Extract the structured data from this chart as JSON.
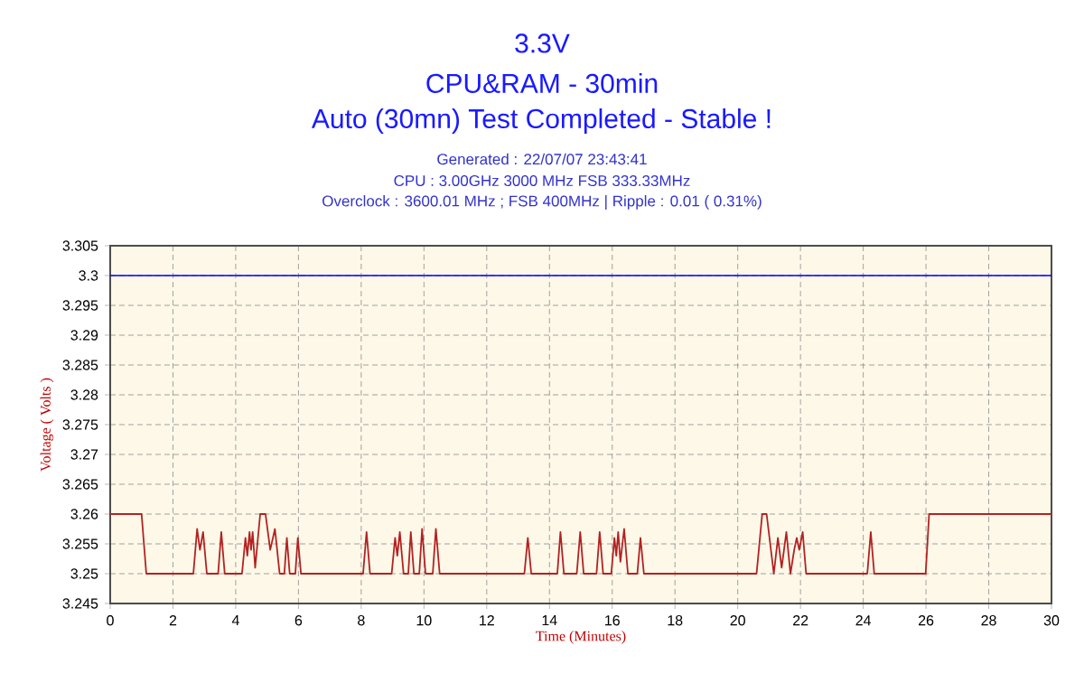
{
  "chart_data": {
    "type": "line",
    "title": "3.3V",
    "subtitle": "CPU&RAM - 30min",
    "annotations": [
      "Auto (30mn) Test Completed - Stable !",
      "Generated : 22/07/07 23:43:41",
      "CPU : 3.00GHz 3000 MHz FSB 333.33MHz",
      "Overclock : 3600.01 MHz ; FSB 400MHz | Ripple : 0.01 ( 0.31%)"
    ],
    "xlabel": "Time (Minutes)",
    "ylabel": "Voltage ( Volts )",
    "x": [
      0,
      1.0,
      1.15,
      2.65,
      2.77,
      2.86,
      2.96,
      3.08,
      3.44,
      3.54,
      3.65,
      4.2,
      4.31,
      4.37,
      4.44,
      4.49,
      4.54,
      4.62,
      4.78,
      4.95,
      5.1,
      5.25,
      5.4,
      5.55,
      5.63,
      5.72,
      5.9,
      5.98,
      6.08,
      8.06,
      8.17,
      8.28,
      8.97,
      9.08,
      9.15,
      9.23,
      9.35,
      9.5,
      9.58,
      9.68,
      9.85,
      9.94,
      10.05,
      10.28,
      10.38,
      10.5,
      13.2,
      13.31,
      13.42,
      14.25,
      14.35,
      14.46,
      14.87,
      14.98,
      15.09,
      15.5,
      15.6,
      15.71,
      15.97,
      16.07,
      16.13,
      16.19,
      16.26,
      16.38,
      16.5,
      16.8,
      16.9,
      17.01,
      20.6,
      20.78,
      20.92,
      21.15,
      21.28,
      21.4,
      21.55,
      21.68,
      21.8,
      21.88,
      21.96,
      22.07,
      22.18,
      24.13,
      24.24,
      24.35,
      25.99,
      26.1,
      30
    ],
    "series": [
      {
        "color": "#b22222",
        "values": [
          3.26,
          3.26,
          3.25,
          3.25,
          3.2575,
          3.254,
          3.257,
          3.25,
          3.25,
          3.257,
          3.25,
          3.25,
          3.256,
          3.253,
          3.257,
          3.254,
          3.257,
          3.251,
          3.26,
          3.26,
          3.254,
          3.2575,
          3.25,
          3.25,
          3.256,
          3.25,
          3.25,
          3.256,
          3.25,
          3.25,
          3.257,
          3.25,
          3.25,
          3.256,
          3.253,
          3.257,
          3.25,
          3.25,
          3.257,
          3.25,
          3.25,
          3.2575,
          3.25,
          3.25,
          3.2575,
          3.25,
          3.25,
          3.256,
          3.25,
          3.25,
          3.257,
          3.25,
          3.25,
          3.257,
          3.25,
          3.25,
          3.257,
          3.25,
          3.25,
          3.256,
          3.253,
          3.257,
          3.252,
          3.2575,
          3.25,
          3.25,
          3.256,
          3.25,
          3.25,
          3.26,
          3.26,
          3.25,
          3.256,
          3.251,
          3.257,
          3.25,
          3.254,
          3.256,
          3.254,
          3.257,
          3.25,
          3.25,
          3.257,
          3.25,
          3.25,
          3.26,
          3.26
        ]
      }
    ],
    "xlim": [
      0,
      30
    ],
    "xticks": [
      0,
      2,
      4,
      6,
      8,
      10,
      12,
      14,
      16,
      18,
      20,
      22,
      24,
      26,
      28,
      30
    ],
    "ylim": [
      3.245,
      3.305
    ],
    "yticks": [
      3.245,
      3.25,
      3.255,
      3.26,
      3.265,
      3.27,
      3.275,
      3.28,
      3.285,
      3.29,
      3.295,
      3.3,
      3.305
    ],
    "ref_lines": [
      {
        "axis": "y",
        "value": 3.3,
        "color": "#0000ff"
      }
    ],
    "grid": true,
    "marker": "none",
    "line_style": "solid"
  }
}
